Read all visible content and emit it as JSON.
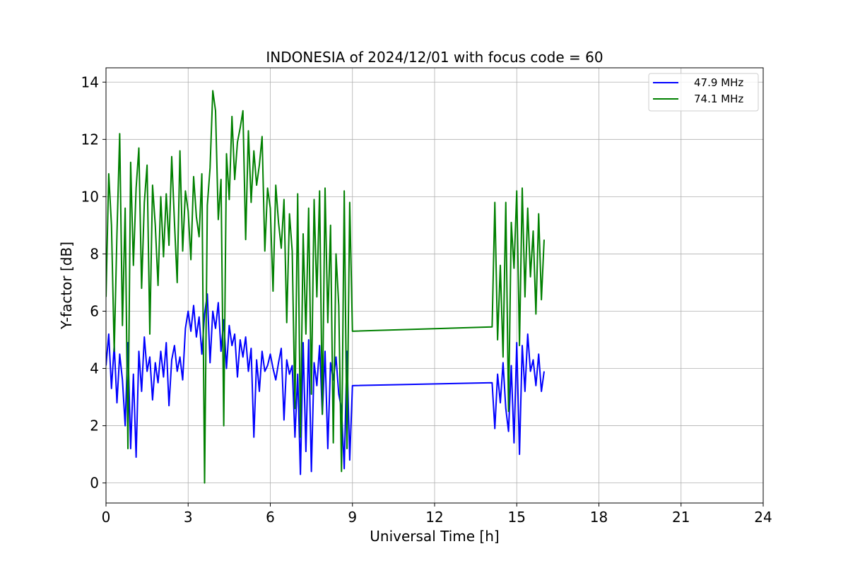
{
  "chart_data": {
    "type": "line",
    "title": "INDONESIA of 2024/12/01 with focus code = 60",
    "xlabel": "Universal Time [h]",
    "ylabel": "Y-factor [dB]",
    "xlim": [
      0,
      24
    ],
    "ylim": [
      -0.7,
      14.5
    ],
    "xticks": [
      0,
      3,
      6,
      9,
      12,
      15,
      18,
      21,
      24
    ],
    "yticks": [
      0,
      2,
      4,
      6,
      8,
      10,
      12,
      14
    ],
    "grid": true,
    "legend_position": "top-right",
    "series": [
      {
        "name": "47.9 MHz",
        "color": "#0000ff",
        "x": [
          0.0,
          0.1,
          0.2,
          0.3,
          0.4,
          0.5,
          0.6,
          0.7,
          0.8,
          0.9,
          1.0,
          1.1,
          1.2,
          1.3,
          1.4,
          1.5,
          1.6,
          1.7,
          1.8,
          1.9,
          2.0,
          2.1,
          2.2,
          2.3,
          2.4,
          2.5,
          2.6,
          2.7,
          2.8,
          2.9,
          3.0,
          3.1,
          3.2,
          3.3,
          3.4,
          3.5,
          3.6,
          3.7,
          3.8,
          3.9,
          4.0,
          4.1,
          4.2,
          4.3,
          4.4,
          4.5,
          4.6,
          4.7,
          4.8,
          4.9,
          5.0,
          5.1,
          5.2,
          5.3,
          5.4,
          5.5,
          5.6,
          5.7,
          5.8,
          5.9,
          6.0,
          6.1,
          6.2,
          6.3,
          6.4,
          6.5,
          6.6,
          6.7,
          6.8,
          6.9,
          7.0,
          7.1,
          7.2,
          7.3,
          7.4,
          7.5,
          7.6,
          7.7,
          7.8,
          7.9,
          8.0,
          8.1,
          8.2,
          8.3,
          8.4,
          8.5,
          8.6,
          8.7,
          8.8,
          8.9,
          9.0,
          14.1,
          14.2,
          14.3,
          14.4,
          14.5,
          14.6,
          14.7,
          14.8,
          14.9,
          15.0,
          15.1,
          15.2,
          15.3,
          15.4,
          15.5,
          15.6,
          15.7,
          15.8,
          15.9,
          16.0
        ],
        "y": [
          4.1,
          5.2,
          3.3,
          4.8,
          2.8,
          4.5,
          3.6,
          2.0,
          4.9,
          1.2,
          3.8,
          0.9,
          4.6,
          3.2,
          5.1,
          3.9,
          4.4,
          2.9,
          4.2,
          3.5,
          4.6,
          3.7,
          4.9,
          2.7,
          4.3,
          4.8,
          3.9,
          4.4,
          3.6,
          5.4,
          6.0,
          5.3,
          6.2,
          5.1,
          5.8,
          4.5,
          5.9,
          6.6,
          4.2,
          6.0,
          5.4,
          6.3,
          4.6,
          5.7,
          4.0,
          5.5,
          4.8,
          5.2,
          3.7,
          5.0,
          4.4,
          5.1,
          3.9,
          4.7,
          1.6,
          4.3,
          3.2,
          4.6,
          3.9,
          4.1,
          4.5,
          4.0,
          3.6,
          4.2,
          4.7,
          2.2,
          4.3,
          3.8,
          4.1,
          1.6,
          3.8,
          0.3,
          4.9,
          1.1,
          5.0,
          0.4,
          4.2,
          3.4,
          4.8,
          2.4,
          4.6,
          1.2,
          4.2,
          3.6,
          4.4,
          3.1,
          2.6,
          0.5,
          4.6,
          0.8,
          3.4,
          3.5,
          1.9,
          3.8,
          2.8,
          4.2,
          2.6,
          1.8,
          4.1,
          1.4,
          4.9,
          1.0,
          4.8,
          3.2,
          5.2,
          3.9,
          4.3,
          3.4,
          4.5,
          3.2,
          3.9
        ]
      },
      {
        "name": "74.1 MHz",
        "color": "#008000",
        "x": [
          0.0,
          0.1,
          0.2,
          0.3,
          0.4,
          0.5,
          0.6,
          0.7,
          0.8,
          0.9,
          1.0,
          1.1,
          1.2,
          1.3,
          1.4,
          1.5,
          1.6,
          1.7,
          1.8,
          1.9,
          2.0,
          2.1,
          2.2,
          2.3,
          2.4,
          2.5,
          2.6,
          2.7,
          2.8,
          2.9,
          3.0,
          3.1,
          3.2,
          3.3,
          3.4,
          3.5,
          3.6,
          3.7,
          3.8,
          3.9,
          4.0,
          4.1,
          4.2,
          4.3,
          4.4,
          4.5,
          4.6,
          4.7,
          4.8,
          4.9,
          5.0,
          5.1,
          5.2,
          5.3,
          5.4,
          5.5,
          5.6,
          5.7,
          5.8,
          5.9,
          6.0,
          6.1,
          6.2,
          6.3,
          6.4,
          6.5,
          6.6,
          6.7,
          6.8,
          6.9,
          7.0,
          7.1,
          7.2,
          7.3,
          7.4,
          7.5,
          7.6,
          7.7,
          7.8,
          7.9,
          8.0,
          8.1,
          8.2,
          8.3,
          8.4,
          8.5,
          8.6,
          8.7,
          8.8,
          8.9,
          9.0,
          14.1,
          14.2,
          14.3,
          14.4,
          14.5,
          14.6,
          14.7,
          14.8,
          14.9,
          15.0,
          15.1,
          15.2,
          15.3,
          15.4,
          15.5,
          15.6,
          15.7,
          15.8,
          15.9,
          16.0
        ],
        "y": [
          6.5,
          10.8,
          9.0,
          4.6,
          8.7,
          12.2,
          5.5,
          9.6,
          1.2,
          11.2,
          7.6,
          10.3,
          11.7,
          6.8,
          9.8,
          11.1,
          5.2,
          10.4,
          9.0,
          6.9,
          10.0,
          7.9,
          10.1,
          8.3,
          11.4,
          9.1,
          7.0,
          11.6,
          8.1,
          10.2,
          9.5,
          7.8,
          10.7,
          9.3,
          8.6,
          10.8,
          0.0,
          9.7,
          11.0,
          13.7,
          13.0,
          9.2,
          10.6,
          2.0,
          11.5,
          9.9,
          12.8,
          10.6,
          11.9,
          12.4,
          13.0,
          8.5,
          12.3,
          9.8,
          11.6,
          10.4,
          11.1,
          12.1,
          8.1,
          10.3,
          9.6,
          6.7,
          10.4,
          9.1,
          8.2,
          9.9,
          5.6,
          9.4,
          8.1,
          2.6,
          10.1,
          1.6,
          8.7,
          5.2,
          9.6,
          3.1,
          9.9,
          6.5,
          10.2,
          2.4,
          10.3,
          5.6,
          9.0,
          1.4,
          8.0,
          6.2,
          0.4,
          10.2,
          1.2,
          9.8,
          5.3,
          5.45,
          9.8,
          5.0,
          7.6,
          4.4,
          9.8,
          2.5,
          9.1,
          7.5,
          10.2,
          4.8,
          10.3,
          6.5,
          9.6,
          7.2,
          8.8,
          5.9,
          9.4,
          6.4,
          8.5
        ]
      }
    ]
  }
}
